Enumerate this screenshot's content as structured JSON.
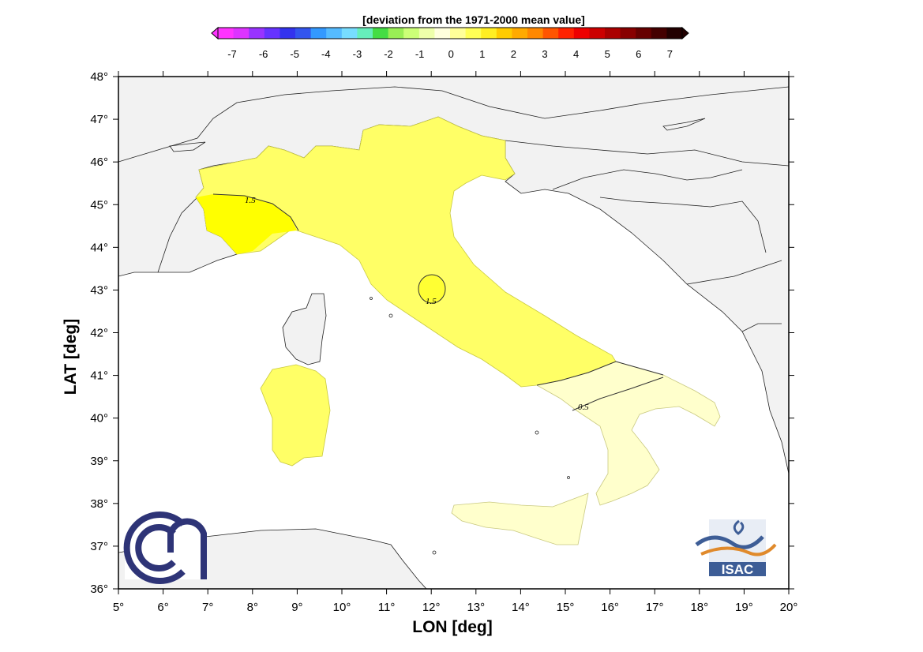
{
  "colorbar": {
    "title": "[deviation from the 1971-2000 mean value]",
    "ticks": [
      "-7",
      "-6",
      "-5",
      "-4",
      "-3",
      "-2",
      "-1",
      "0",
      "1",
      "2",
      "3",
      "4",
      "5",
      "6",
      "7"
    ],
    "colors": [
      "#ff33ff",
      "#dd33ff",
      "#9933ff",
      "#6633ff",
      "#3333ee",
      "#3355ee",
      "#3399ff",
      "#55bbff",
      "#77ddff",
      "#66eebb",
      "#44dd44",
      "#99ee55",
      "#ccff77",
      "#eeffaa",
      "#ffffdd",
      "#ffff99",
      "#ffff55",
      "#ffee22",
      "#ffcc00",
      "#ffaa00",
      "#ff8800",
      "#ff5500",
      "#ff2200",
      "#ee0000",
      "#cc0000",
      "#aa0000",
      "#880000",
      "#660000",
      "#440000",
      "#220000"
    ],
    "under_color": "#ff33ff",
    "over_color": "#220000"
  },
  "axes": {
    "xlabel": "LON [deg]",
    "ylabel": "LAT [deg]",
    "xticks": [
      "5°",
      "6°",
      "7°",
      "8°",
      "9°",
      "10°",
      "11°",
      "12°",
      "13°",
      "14°",
      "15°",
      "16°",
      "17°",
      "18°",
      "19°",
      "20°"
    ],
    "yticks": [
      "36°",
      "37°",
      "38°",
      "39°",
      "40°",
      "41°",
      "42°",
      "43°",
      "44°",
      "45°",
      "46°",
      "47°",
      "48°"
    ],
    "lon_range": [
      5,
      20
    ],
    "lat_range": [
      36,
      48
    ]
  },
  "contours": {
    "labels": [
      "1.5",
      "1.5",
      "0.5"
    ],
    "fill_north": "#ffff66",
    "fill_max": "#ffff00",
    "fill_south": "#ffffcc",
    "land": "#f2f2f2"
  },
  "logos": {
    "left": {
      "name": "CNR",
      "color": "#2e3477"
    },
    "right": {
      "text": "ISAC",
      "accent": "#e08a2c",
      "color": "#3d5d96"
    }
  }
}
